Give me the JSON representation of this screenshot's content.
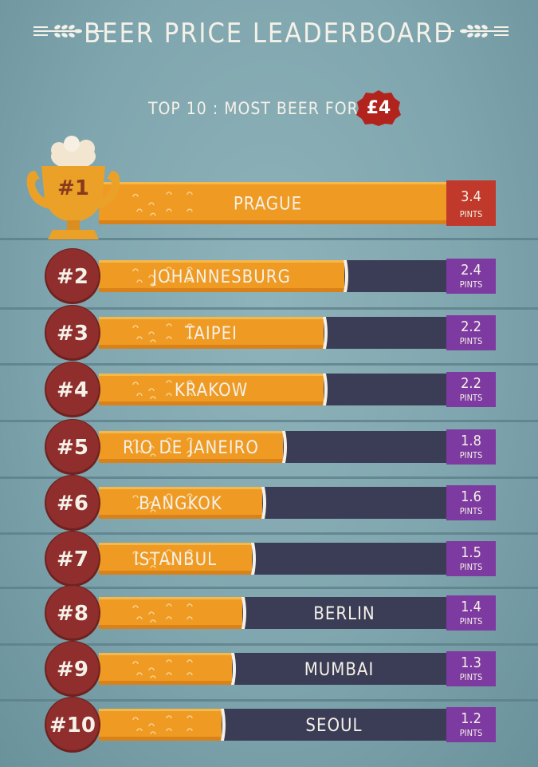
{
  "header": {
    "title": "BEER PRICE LEADERBOARD",
    "subtitle": "TOP 10 : MOST BEER FOR",
    "price": "£4"
  },
  "colors": {
    "beer": "#ef9a23",
    "beer_dark": "#d9821a",
    "empty": "#3b3c55",
    "pints_top": "#c0392b",
    "pints_other": "#7d3aa0",
    "rank_circle": "#8f2e2c",
    "trophy": "#eba128",
    "badge": "#b3231d"
  },
  "chart_data": {
    "type": "bar",
    "title": "BEER PRICE LEADERBOARD",
    "subtitle": "TOP 10 : MOST BEER FOR £4",
    "ranks": [
      "#1",
      "#2",
      "#3",
      "#4",
      "#5",
      "#6",
      "#7",
      "#8",
      "#9",
      "#10"
    ],
    "categories": [
      "PRAGUE",
      "JOHANNESBURG",
      "TAIPEI",
      "KRAKOW",
      "RIO DE JANEIRO",
      "BANGKOK",
      "ISTANBUL",
      "BERLIN",
      "MUMBAI",
      "SEOUL"
    ],
    "values": [
      3.4,
      2.4,
      2.2,
      2.2,
      1.8,
      1.6,
      1.5,
      1.4,
      1.3,
      1.2
    ],
    "value_labels": [
      "3.4",
      "2.4",
      "2.2",
      "2.2",
      "1.8",
      "1.6",
      "1.5",
      "1.4",
      "1.3",
      "1.2"
    ],
    "unit": "PINTS",
    "xlim": [
      0,
      3.4
    ]
  }
}
